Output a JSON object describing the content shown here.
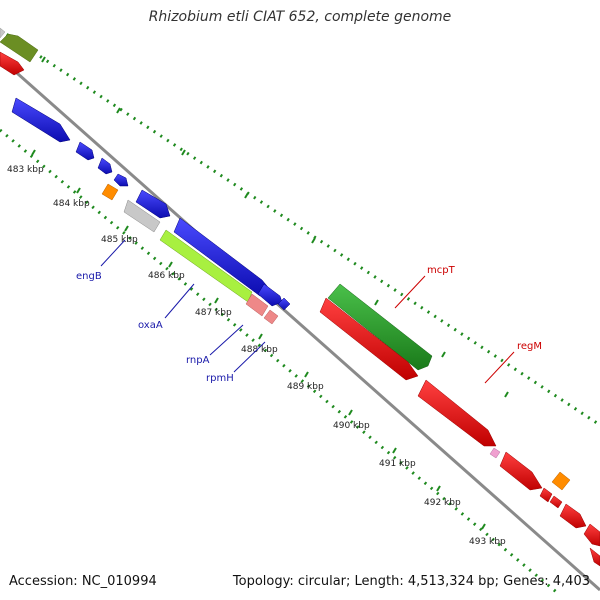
{
  "title": "Rhizobium etli CIAT 652, complete genome",
  "accession": "Accession: NC_010994",
  "summary": "Topology: circular; Length: 4,513,324 bp; Genes: 4,403",
  "colors": {
    "backbone": "#8a8a8a",
    "dotted_track": "#1f8a1f",
    "blue_gene": "#1a1ad6",
    "red_gene": "#e01010",
    "green_gene": "#2a9a2a",
    "olive_gene": "#6b8e23",
    "lime_gene": "#a8f040",
    "pink_gene": "#ee8888",
    "orange_gene": "#ff8c00",
    "grey_gene": "#c8c8c8",
    "label_blue": "#1a1aaa",
    "label_red": "#cc0000"
  },
  "ticks": [
    "483 kbp",
    "484 kbp",
    "485 kbp",
    "486 kbp",
    "487 kbp",
    "488 kbp",
    "489 kbp",
    "490 kbp",
    "491 kbp",
    "492 kbp",
    "493 kbp"
  ],
  "gene_labels": [
    {
      "text": "engB",
      "color": "blue"
    },
    {
      "text": "oxaA",
      "color": "blue"
    },
    {
      "text": "rnpA",
      "color": "blue"
    },
    {
      "text": "rpmH",
      "color": "blue"
    },
    {
      "text": "mcpT",
      "color": "red"
    },
    {
      "text": "regM",
      "color": "red"
    }
  ]
}
